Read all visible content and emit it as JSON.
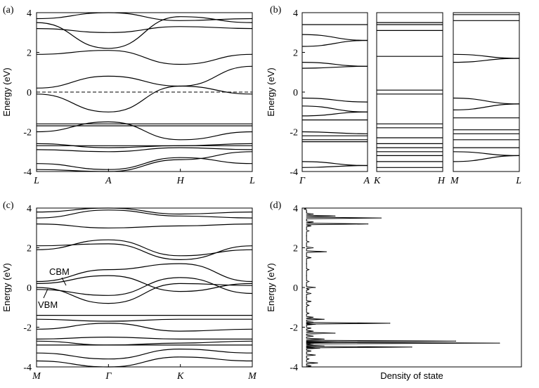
{
  "chart_data": [
    {
      "panel": "(a)",
      "type": "line",
      "ylabel": "Energy (eV)",
      "ylim": [
        -4,
        4
      ],
      "yticks": [
        "4",
        "2",
        "0",
        "-2",
        "-4"
      ],
      "kpoints": [
        "L",
        "A",
        "H",
        "L"
      ],
      "x": [
        0,
        1,
        2,
        3
      ],
      "fermi_level": 0,
      "series": [
        {
          "values": [
            -0.1,
            -1.0,
            0.3,
            1.3
          ]
        },
        {
          "values": [
            0.2,
            0.8,
            0.3,
            -0.1
          ]
        },
        {
          "values": [
            1.9,
            2.1,
            1.4,
            1.9
          ]
        },
        {
          "values": [
            3.5,
            2.2,
            3.8,
            3.5
          ]
        },
        {
          "values": [
            3.2,
            3.0,
            3.3,
            3.2
          ]
        },
        {
          "values": [
            3.7,
            4.0,
            3.6,
            3.7
          ]
        },
        {
          "values": [
            -1.6,
            -1.6,
            -1.6,
            -1.6
          ]
        },
        {
          "values": [
            -1.7,
            -1.7,
            -1.7,
            -1.7
          ]
        },
        {
          "values": [
            -2.0,
            -1.5,
            -2.4,
            -2.0
          ]
        },
        {
          "values": [
            -2.6,
            -2.8,
            -2.7,
            -2.6
          ]
        },
        {
          "values": [
            -2.7,
            -2.7,
            -2.7,
            -2.7
          ]
        },
        {
          "values": [
            -2.9,
            -3.0,
            -2.8,
            -2.9
          ]
        },
        {
          "values": [
            -3.6,
            -3.9,
            -3.3,
            -3.6
          ]
        },
        {
          "values": [
            -3.9,
            -4.0,
            -3.4,
            -3.0
          ]
        }
      ]
    },
    {
      "panel": "(b)",
      "type": "line",
      "ylabel": "Energy (eV)",
      "ylim": [
        -4,
        4
      ],
      "yticks": [
        "4",
        "2",
        "0",
        "-2",
        "-4"
      ],
      "subpanels": [
        {
          "kpoints": [
            "Γ",
            "A"
          ],
          "x": [
            0,
            1
          ],
          "series": [
            {
              "values": [
                3.4,
                3.4
              ]
            },
            {
              "values": [
                2.9,
                2.6
              ]
            },
            {
              "values": [
                2.3,
                2.6
              ]
            },
            {
              "values": [
                1.5,
                1.3
              ]
            },
            {
              "values": [
                1.2,
                1.3
              ]
            },
            {
              "values": [
                -0.3,
                -0.5
              ]
            },
            {
              "values": [
                -0.7,
                -1.0
              ]
            },
            {
              "values": [
                -1.2,
                -1.0
              ]
            },
            {
              "values": [
                -1.4,
                -1.4
              ]
            },
            {
              "values": [
                -2.0,
                -2.1
              ]
            },
            {
              "values": [
                -2.2,
                -2.2
              ]
            },
            {
              "values": [
                -2.4,
                -2.4
              ]
            },
            {
              "values": [
                -2.5,
                -2.5
              ]
            },
            {
              "values": [
                -3.5,
                -3.7
              ]
            },
            {
              "values": [
                -3.8,
                -3.7
              ]
            }
          ]
        },
        {
          "kpoints": [
            "K",
            "H"
          ],
          "x": [
            0,
            1
          ],
          "series": [
            {
              "values": [
                3.5,
                3.5
              ]
            },
            {
              "values": [
                3.4,
                3.4
              ]
            },
            {
              "values": [
                3.1,
                3.1
              ]
            },
            {
              "values": [
                1.8,
                1.8
              ]
            },
            {
              "values": [
                0.1,
                0.1
              ]
            },
            {
              "values": [
                -0.1,
                -0.1
              ]
            },
            {
              "values": [
                -1.6,
                -1.6
              ]
            },
            {
              "values": [
                -1.8,
                -1.8
              ]
            },
            {
              "values": [
                -2.3,
                -2.3
              ]
            },
            {
              "values": [
                -2.6,
                -2.6
              ]
            },
            {
              "values": [
                -2.8,
                -2.8
              ]
            },
            {
              "values": [
                -3.0,
                -3.0
              ]
            },
            {
              "values": [
                -3.2,
                -3.2
              ]
            },
            {
              "values": [
                -3.5,
                -3.5
              ]
            },
            {
              "values": [
                -3.8,
                -3.8
              ]
            }
          ]
        },
        {
          "kpoints": [
            "M",
            "L"
          ],
          "x": [
            0,
            1
          ],
          "series": [
            {
              "values": [
                3.9,
                3.9
              ]
            },
            {
              "values": [
                3.6,
                3.6
              ]
            },
            {
              "values": [
                1.9,
                1.7
              ]
            },
            {
              "values": [
                1.5,
                1.7
              ]
            },
            {
              "values": [
                -0.3,
                -0.6
              ]
            },
            {
              "values": [
                -0.9,
                -0.6
              ]
            },
            {
              "values": [
                -1.3,
                -1.3
              ]
            },
            {
              "values": [
                -1.9,
                -1.9
              ]
            },
            {
              "values": [
                -2.1,
                -2.1
              ]
            },
            {
              "values": [
                -2.4,
                -2.4
              ]
            },
            {
              "values": [
                -2.8,
                -2.8
              ]
            },
            {
              "values": [
                -3.0,
                -3.2
              ]
            },
            {
              "values": [
                -3.5,
                -3.2
              ]
            }
          ]
        }
      ]
    },
    {
      "panel": "(c)",
      "type": "line",
      "ylabel": "Energy (eV)",
      "ylim": [
        -4,
        4
      ],
      "yticks": [
        "4",
        "2",
        "0",
        "-2",
        "-4"
      ],
      "kpoints": [
        "M",
        "Γ",
        "K",
        "M"
      ],
      "x": [
        0,
        1,
        2,
        3
      ],
      "annotations": [
        "CBM",
        "VBM"
      ],
      "series": [
        {
          "values": [
            0.0,
            -0.8,
            0.2,
            0.1
          ]
        },
        {
          "values": [
            0.2,
            0.6,
            -0.2,
            0.2
          ]
        },
        {
          "values": [
            -0.1,
            -0.4,
            0.5,
            -0.3
          ]
        },
        {
          "values": [
            0.3,
            0.9,
            1.2,
            0.3
          ]
        },
        {
          "values": [
            1.9,
            2.4,
            1.6,
            1.9
          ]
        },
        {
          "values": [
            2.1,
            2.2,
            1.4,
            2.1
          ]
        },
        {
          "values": [
            3.2,
            3.0,
            3.1,
            3.2
          ]
        },
        {
          "values": [
            3.5,
            3.9,
            3.6,
            3.5
          ]
        },
        {
          "values": [
            3.8,
            4.0,
            3.7,
            3.8
          ]
        },
        {
          "values": [
            -1.4,
            -1.4,
            -1.4,
            -1.4
          ]
        },
        {
          "values": [
            -1.6,
            -1.7,
            -1.6,
            -1.6
          ]
        },
        {
          "values": [
            -2.1,
            -1.8,
            -2.2,
            -2.1
          ]
        },
        {
          "values": [
            -2.6,
            -2.5,
            -2.6,
            -2.6
          ]
        },
        {
          "values": [
            -2.7,
            -2.9,
            -2.8,
            -2.7
          ]
        },
        {
          "values": [
            -2.9,
            -2.9,
            -2.9,
            -2.9
          ]
        },
        {
          "values": [
            -3.3,
            -3.6,
            -3.1,
            -3.3
          ]
        },
        {
          "values": [
            -3.7,
            -4.0,
            -3.5,
            -3.7
          ]
        }
      ]
    },
    {
      "panel": "(d)",
      "type": "line",
      "xlabel": "Density of state",
      "ylabel": "Energy (eV)",
      "ylim": [
        -4,
        4
      ],
      "yticks": [
        "4",
        "2",
        "0",
        "-2",
        "-4"
      ],
      "energy": [
        -3.95,
        -3.8,
        -3.6,
        -3.4,
        -3.2,
        -3.05,
        -3.0,
        -2.95,
        -2.85,
        -2.8,
        -2.75,
        -2.7,
        -2.6,
        -2.45,
        -2.3,
        -2.2,
        -2.05,
        -1.85,
        -1.8,
        -1.75,
        -1.6,
        -1.5,
        -1.3,
        -1.1,
        -0.9,
        -0.7,
        -0.5,
        -0.3,
        -0.1,
        0.0,
        0.1,
        0.3,
        0.6,
        0.9,
        1.2,
        1.5,
        1.8,
        2.0,
        2.3,
        2.6,
        2.85,
        3.1,
        3.2,
        3.3,
        3.5,
        3.6,
        3.7,
        3.8,
        3.95
      ],
      "dos": [
        0.04,
        0.07,
        0.03,
        0.06,
        0.04,
        0.08,
        0.5,
        0.1,
        0.05,
        0.9,
        0.2,
        0.7,
        0.1,
        0.05,
        0.15,
        0.05,
        0.04,
        0.06,
        0.4,
        0.05,
        0.1,
        0.05,
        0.03,
        0.02,
        0.03,
        0.04,
        0.02,
        0.04,
        0.03,
        0.06,
        0.02,
        0.03,
        0.02,
        0.03,
        0.02,
        0.04,
        0.11,
        0.05,
        0.03,
        0.02,
        0.03,
        0.04,
        0.3,
        0.05,
        0.36,
        0.15,
        0.05,
        0.02,
        0.01
      ]
    }
  ]
}
